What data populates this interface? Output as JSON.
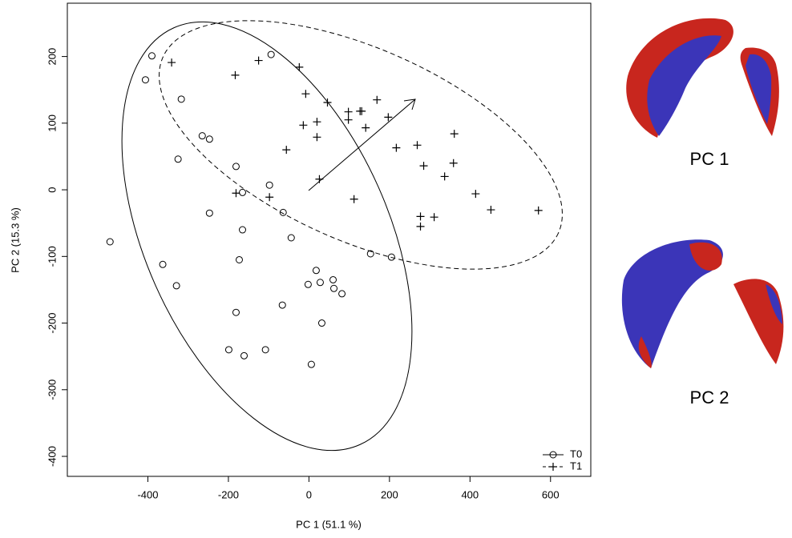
{
  "chart_data": {
    "type": "scatter",
    "xlabel": "PC 1 (51.1 %)",
    "ylabel": "PC 2 (15.3 %)",
    "xlim": [
      -600,
      700
    ],
    "ylim": [
      -430,
      280
    ],
    "xticks": [
      -400,
      -200,
      0,
      200,
      400,
      600
    ],
    "yticks": [
      -400,
      -300,
      -200,
      -100,
      0,
      100,
      200
    ],
    "legend": "bottom-right",
    "annotations": [
      "PC 1",
      "PC 2"
    ],
    "series": [
      {
        "name": "T0",
        "color": "#000000",
        "marker": "circle",
        "x": [
          -406,
          -390,
          -317,
          -325,
          -265,
          -247,
          -247,
          -494,
          -363,
          -329,
          -181,
          -165,
          -165,
          -173,
          -181,
          -199,
          -161,
          -94,
          -98,
          -64,
          -44,
          -66,
          -108,
          -2,
          18,
          28,
          60,
          62,
          82,
          32,
          6,
          153,
          205
        ],
        "values": [
          165,
          201,
          136,
          46,
          81,
          76,
          -35,
          -78,
          -112,
          -144,
          35,
          -4,
          -60,
          -105,
          -184,
          -240,
          -249,
          203,
          7,
          -34,
          -72,
          -173,
          -240,
          -142,
          -121,
          -139,
          -135,
          -148,
          -156,
          -200,
          -262,
          -96,
          -101
        ]
      },
      {
        "name": "T1",
        "color": "#000000",
        "marker": "plus",
        "x": [
          -341,
          -183,
          -125,
          -24,
          -8,
          -14,
          20,
          20,
          46,
          98,
          98,
          127,
          131,
          141,
          169,
          197,
          -56,
          -98,
          -181,
          26,
          112,
          217,
          269,
          285,
          337,
          359,
          361,
          311,
          277,
          277,
          414,
          452,
          570
        ],
        "values": [
          191,
          172,
          194,
          184,
          144,
          97,
          102,
          79,
          131,
          117,
          105,
          118,
          118,
          93,
          135,
          109,
          60,
          -11,
          -5,
          16,
          -14,
          63,
          67,
          36,
          20,
          40,
          84,
          -41,
          -40,
          -55,
          -6,
          -30,
          -31
        ]
      }
    ]
  }
}
